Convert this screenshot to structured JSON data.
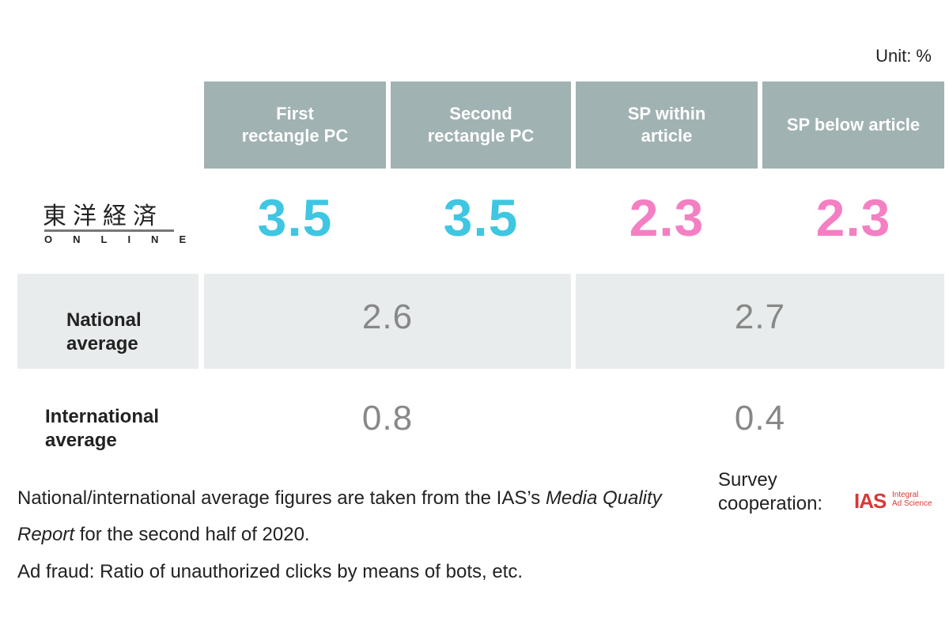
{
  "unit_label": "Unit: %",
  "chart_data": {
    "type": "table",
    "columns": [
      "First\nrectangle PC",
      "Second\nrectangle PC",
      "SP within\narticle",
      "SP below article"
    ],
    "rows": [
      {
        "label": "東洋経済 ONLINE",
        "values": [
          3.5,
          3.5,
          2.3,
          2.3
        ],
        "display": [
          "3.5",
          "3.5",
          "2.3",
          "2.3"
        ]
      },
      {
        "label": "National\naverage",
        "values": [
          2.6,
          2.7
        ],
        "display": [
          "2.6",
          "2.7"
        ],
        "spans": [
          [
            0,
            1
          ],
          [
            2,
            3
          ]
        ]
      },
      {
        "label": "International\naverage",
        "values": [
          0.8,
          0.4
        ],
        "display": [
          "0.8",
          "0.4"
        ],
        "spans": [
          [
            0,
            1
          ],
          [
            2,
            3
          ]
        ]
      }
    ]
  },
  "logo": {
    "kanji": "東洋経済",
    "sub": "ONLINE"
  },
  "notes": {
    "line1_prefix": "National/international average figures are taken from the IAS’s ",
    "line1_italic": "Media Quality",
    "line2_italic": "Report",
    "line2_suffix": " for the second half of 2020.",
    "line3": "Ad fraud: Ratio of unauthorized clicks by means of bots, etc."
  },
  "survey_label": "Survey\ncooperation:",
  "ias_logo": {
    "mark": "IAS",
    "line1": "Integral",
    "line2": "Ad Science"
  },
  "colors": {
    "header_bg": "#a0b2b1",
    "blue": "#3ec6e2",
    "pink": "#f47fc2",
    "gray_row": "#e9ecec",
    "avg_text": "#888888"
  }
}
